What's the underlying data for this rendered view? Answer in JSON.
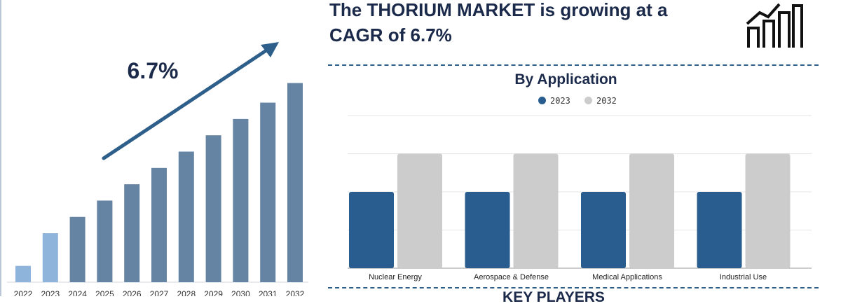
{
  "headline": "The THORIUM MARKET is growing at a CAGR of 6.7%",
  "growth_label": "6.7%",
  "application_title": "By Application",
  "key_players_title": "KEY PLAYERS",
  "colors": {
    "bar_2023": "#2a5d8f",
    "bar_2032": "#cccccc",
    "growth_bar": "#6584a3",
    "growth_bar_early": "#8fb4dc",
    "arrow": "#2e5f8a",
    "title": "#1b2a4a"
  },
  "icons": [
    "growth-chart-icon"
  ],
  "chart_data": [
    {
      "type": "bar",
      "title": "",
      "categories": [
        "2022",
        "2023",
        "2024",
        "2025",
        "2026",
        "2027",
        "2028",
        "2029",
        "2030",
        "2031",
        "2032"
      ],
      "values": [
        1,
        3,
        4,
        5,
        6,
        7,
        8,
        9,
        10,
        11,
        12.2
      ],
      "xlabel": "",
      "ylabel": "",
      "ylim": [
        0,
        13
      ],
      "annotation": "6.7%",
      "grid": false
    },
    {
      "type": "bar",
      "title": "By Application",
      "categories": [
        "Nuclear Energy",
        "Aerospace & Defense",
        "Medical Applications",
        "Industrial Use"
      ],
      "series": [
        {
          "name": "2023",
          "values": [
            2,
            2,
            2,
            2
          ]
        },
        {
          "name": "2032",
          "values": [
            3,
            3,
            3,
            3
          ]
        }
      ],
      "xlabel": "",
      "ylabel": "",
      "ylim": [
        0,
        4
      ],
      "legend": "top-center",
      "grid": true
    }
  ]
}
